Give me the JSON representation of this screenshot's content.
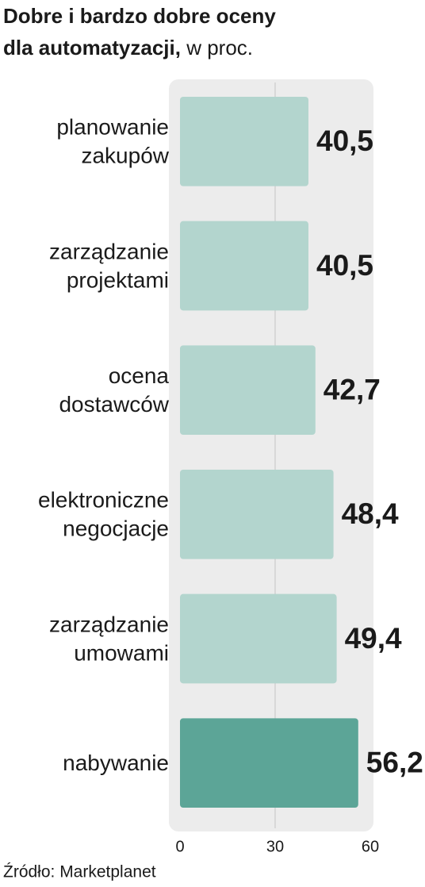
{
  "chart_data": {
    "type": "bar",
    "orientation": "horizontal",
    "title": [
      "Dobre i bardzo dobre oceny",
      "dla automatyzacji,"
    ],
    "subtitle": "w proc.",
    "categories": [
      [
        "planowanie",
        "zakupów"
      ],
      [
        "zarządzanie",
        "projektami"
      ],
      [
        "ocena",
        "dostawców"
      ],
      [
        "elektroniczne",
        "negocjacje"
      ],
      [
        "zarządzanie",
        "umowami"
      ],
      [
        "nabywanie"
      ]
    ],
    "values": [
      40.5,
      40.5,
      42.7,
      48.4,
      49.4,
      56.2
    ],
    "value_labels": [
      "40,5",
      "40,5",
      "42,7",
      "48,4",
      "49,4",
      "56,2"
    ],
    "colors": [
      "#b3d5ce",
      "#b3d5ce",
      "#b3d5ce",
      "#b3d5ce",
      "#b3d5ce",
      "#5ca597"
    ],
    "xlim": [
      0,
      60
    ],
    "xticks": [
      0,
      30,
      60
    ],
    "grid": true,
    "source": "Źródło: Marketplanet"
  }
}
